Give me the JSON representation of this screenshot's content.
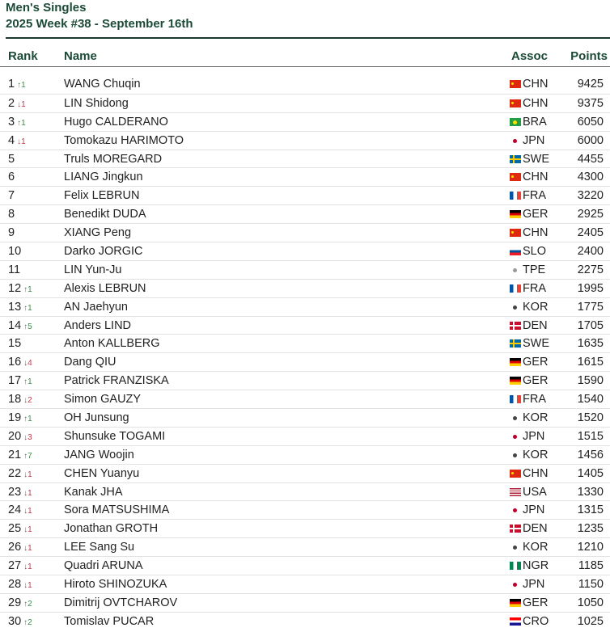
{
  "title": "Men's Singles",
  "subtitle": "2025 Week #38 - September 16th",
  "columns": {
    "rank": "Rank",
    "name": "Name",
    "assoc": "Assoc",
    "points": "Points"
  },
  "colors": {
    "heading": "#1b4a36",
    "up": "#3a8a4a",
    "down": "#c0394a"
  },
  "rows": [
    {
      "rank": 1,
      "change": "↑1",
      "dir": "up",
      "name": "WANG Chuqin",
      "assoc": "CHN",
      "points": 9425
    },
    {
      "rank": 2,
      "change": "↓1",
      "dir": "down",
      "name": "LIN Shidong",
      "assoc": "CHN",
      "points": 9375
    },
    {
      "rank": 3,
      "change": "↑1",
      "dir": "up",
      "name": "Hugo CALDERANO",
      "assoc": "BRA",
      "points": 6050
    },
    {
      "rank": 4,
      "change": "↓1",
      "dir": "down",
      "name": "Tomokazu HARIMOTO",
      "assoc": "JPN",
      "points": 6000
    },
    {
      "rank": 5,
      "change": "",
      "dir": "",
      "name": "Truls MOREGARD",
      "assoc": "SWE",
      "points": 4455
    },
    {
      "rank": 6,
      "change": "",
      "dir": "",
      "name": "LIANG Jingkun",
      "assoc": "CHN",
      "points": 4300
    },
    {
      "rank": 7,
      "change": "",
      "dir": "",
      "name": "Felix LEBRUN",
      "assoc": "FRA",
      "points": 3220
    },
    {
      "rank": 8,
      "change": "",
      "dir": "",
      "name": "Benedikt DUDA",
      "assoc": "GER",
      "points": 2925
    },
    {
      "rank": 9,
      "change": "",
      "dir": "",
      "name": "XIANG Peng",
      "assoc": "CHN",
      "points": 2405
    },
    {
      "rank": 10,
      "change": "",
      "dir": "",
      "name": "Darko JORGIC",
      "assoc": "SLO",
      "points": 2400
    },
    {
      "rank": 11,
      "change": "",
      "dir": "",
      "name": "LIN Yun-Ju",
      "assoc": "TPE",
      "points": 2275
    },
    {
      "rank": 12,
      "change": "↑1",
      "dir": "up",
      "name": "Alexis LEBRUN",
      "assoc": "FRA",
      "points": 1995
    },
    {
      "rank": 13,
      "change": "↑1",
      "dir": "up",
      "name": "AN Jaehyun",
      "assoc": "KOR",
      "points": 1775
    },
    {
      "rank": 14,
      "change": "↑5",
      "dir": "up",
      "name": "Anders LIND",
      "assoc": "DEN",
      "points": 1705
    },
    {
      "rank": 15,
      "change": "",
      "dir": "",
      "name": "Anton KALLBERG",
      "assoc": "SWE",
      "points": 1635
    },
    {
      "rank": 16,
      "change": "↓4",
      "dir": "down",
      "name": "Dang QIU",
      "assoc": "GER",
      "points": 1615
    },
    {
      "rank": 17,
      "change": "↑1",
      "dir": "up",
      "name": "Patrick FRANZISKA",
      "assoc": "GER",
      "points": 1590
    },
    {
      "rank": 18,
      "change": "↓2",
      "dir": "down",
      "name": "Simon GAUZY",
      "assoc": "FRA",
      "points": 1540
    },
    {
      "rank": 19,
      "change": "↑1",
      "dir": "up",
      "name": "OH Junsung",
      "assoc": "KOR",
      "points": 1520
    },
    {
      "rank": 20,
      "change": "↓3",
      "dir": "down",
      "name": "Shunsuke TOGAMI",
      "assoc": "JPN",
      "points": 1515
    },
    {
      "rank": 21,
      "change": "↑7",
      "dir": "up",
      "name": "JANG Woojin",
      "assoc": "KOR",
      "points": 1456
    },
    {
      "rank": 22,
      "change": "↓1",
      "dir": "down",
      "name": "CHEN Yuanyu",
      "assoc": "CHN",
      "points": 1405
    },
    {
      "rank": 23,
      "change": "↓1",
      "dir": "down",
      "name": "Kanak JHA",
      "assoc": "USA",
      "points": 1330
    },
    {
      "rank": 24,
      "change": "↓1",
      "dir": "down",
      "name": "Sora MATSUSHIMA",
      "assoc": "JPN",
      "points": 1315
    },
    {
      "rank": 25,
      "change": "↓1",
      "dir": "down",
      "name": "Jonathan GROTH",
      "assoc": "DEN",
      "points": 1235
    },
    {
      "rank": 26,
      "change": "↓1",
      "dir": "down",
      "name": "LEE Sang Su",
      "assoc": "KOR",
      "points": 1210
    },
    {
      "rank": 27,
      "change": "↓1",
      "dir": "down",
      "name": "Quadri ARUNA",
      "assoc": "NGR",
      "points": 1185
    },
    {
      "rank": 28,
      "change": "↓1",
      "dir": "down",
      "name": "Hiroto SHINOZUKA",
      "assoc": "JPN",
      "points": 1150
    },
    {
      "rank": 29,
      "change": "↑2",
      "dir": "up",
      "name": "Dimitrij OVTCHAROV",
      "assoc": "GER",
      "points": 1050
    },
    {
      "rank": 30,
      "change": "↑2",
      "dir": "up",
      "name": "Tomislav PUCAR",
      "assoc": "CRO",
      "points": 1025
    }
  ]
}
